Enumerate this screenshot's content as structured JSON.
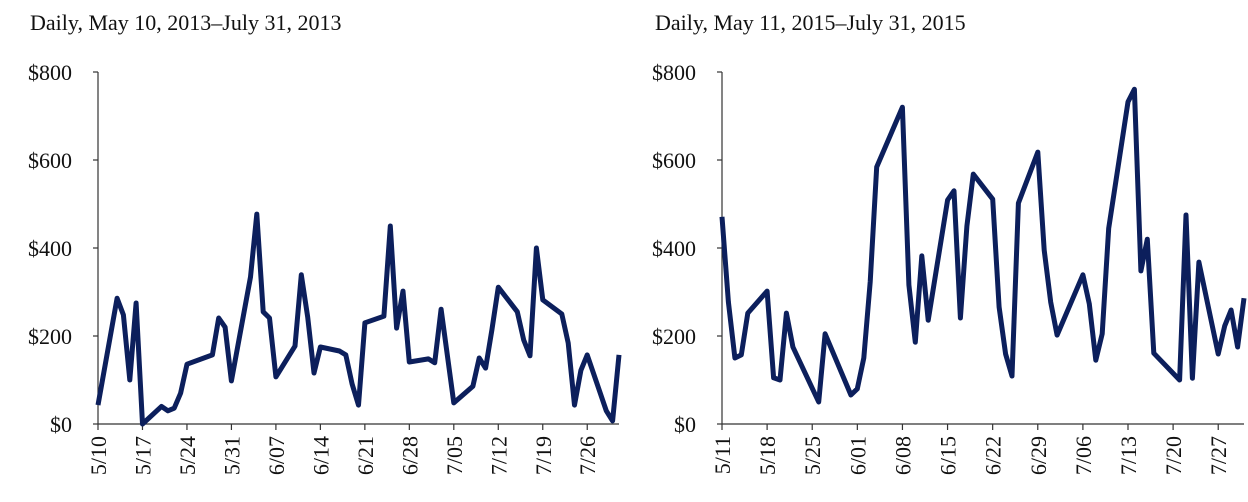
{
  "chart_data": [
    {
      "type": "line",
      "title": "Daily, May 10, 2013–July 31, 2013",
      "color": "#0c1f5c",
      "x": [
        0,
        3,
        4,
        5,
        6,
        7,
        10,
        11,
        12,
        13,
        14,
        18,
        19,
        20,
        21,
        24,
        25,
        26,
        27,
        28,
        31,
        32,
        33,
        34,
        35,
        38,
        39,
        40,
        41,
        42,
        45,
        46,
        47,
        48,
        49,
        52,
        53,
        54,
        56,
        59,
        60,
        61,
        62,
        63,
        66,
        67,
        68,
        69,
        70,
        73,
        74,
        75,
        76,
        77,
        80,
        81,
        82
      ],
      "series": [
        {
          "name": "2013",
          "color": "#0c1f5c",
          "values": [
            43,
            286,
            248,
            100,
            275,
            0,
            40,
            30,
            36,
            70,
            136,
            157,
            241,
            220,
            98,
            334,
            477,
            255,
            241,
            107,
            177,
            339,
            243,
            116,
            175,
            166,
            157,
            91,
            43,
            230,
            245,
            450,
            218,
            302,
            141,
            148,
            139,
            261,
            48,
            86,
            150,
            127,
            214,
            311,
            255,
            191,
            155,
            400,
            282,
            250,
            184,
            43,
            122,
            157,
            30,
            7,
            157
          ]
        }
      ],
      "xlim": [
        0,
        82
      ],
      "xticks": [
        {
          "value": 0,
          "label": "5/10"
        },
        {
          "value": 7,
          "label": "5/17"
        },
        {
          "value": 14,
          "label": "5/24"
        },
        {
          "value": 21,
          "label": "5/31"
        },
        {
          "value": 28,
          "label": "6/07"
        },
        {
          "value": 35,
          "label": "6/14"
        },
        {
          "value": 42,
          "label": "6/21"
        },
        {
          "value": 49,
          "label": "6/28"
        },
        {
          "value": 56,
          "label": "7/05"
        },
        {
          "value": 63,
          "label": "7/12"
        },
        {
          "value": 70,
          "label": "7/19"
        },
        {
          "value": 77,
          "label": "7/26"
        }
      ],
      "ylim": [
        0,
        800
      ],
      "yticks": [
        {
          "value": 0,
          "label": "$0"
        },
        {
          "value": 200,
          "label": "$200"
        },
        {
          "value": 400,
          "label": "$400"
        },
        {
          "value": 600,
          "label": "$600"
        },
        {
          "value": 800,
          "label": "$800"
        }
      ]
    },
    {
      "type": "line",
      "title": "Daily, May 11, 2015–July 31, 2015",
      "color": "#0c1f5c",
      "x": [
        0,
        1,
        2,
        3,
        4,
        7,
        8,
        9,
        10,
        11,
        15,
        16,
        20,
        21,
        22,
        23,
        24,
        28,
        29,
        30,
        31,
        32,
        35,
        36,
        37,
        38,
        39,
        42,
        43,
        44,
        45,
        46,
        49,
        50,
        51,
        52,
        56,
        57,
        58,
        59,
        60,
        63,
        64,
        65,
        66,
        67,
        71,
        72,
        73,
        74,
        77,
        78,
        79,
        80,
        81
      ],
      "series": [
        {
          "name": "2015",
          "color": "#0c1f5c",
          "values": [
            471,
            277,
            150,
            157,
            252,
            302,
            105,
            100,
            252,
            175,
            50,
            205,
            66,
            80,
            150,
            323,
            584,
            720,
            316,
            186,
            382,
            236,
            509,
            530,
            241,
            450,
            568,
            511,
            266,
            159,
            109,
            502,
            618,
            395,
            277,
            202,
            339,
            273,
            145,
            205,
            445,
            732,
            761,
            348,
            420,
            161,
            100,
            475,
            104,
            368,
            159,
            223,
            259,
            175,
            286
          ]
        }
      ],
      "xlim": [
        0,
        81
      ],
      "xticks": [
        {
          "value": 0,
          "label": "5/11"
        },
        {
          "value": 7,
          "label": "5/18"
        },
        {
          "value": 14,
          "label": "5/25"
        },
        {
          "value": 21,
          "label": "6/01"
        },
        {
          "value": 28,
          "label": "6/08"
        },
        {
          "value": 35,
          "label": "6/15"
        },
        {
          "value": 42,
          "label": "6/22"
        },
        {
          "value": 49,
          "label": "6/29"
        },
        {
          "value": 56,
          "label": "7/06"
        },
        {
          "value": 63,
          "label": "7/13"
        },
        {
          "value": 70,
          "label": "7/20"
        },
        {
          "value": 77,
          "label": "7/27"
        }
      ],
      "ylim": [
        0,
        800
      ],
      "yticks": [
        {
          "value": 0,
          "label": "$0"
        },
        {
          "value": 200,
          "label": "$200"
        },
        {
          "value": 400,
          "label": "$400"
        },
        {
          "value": 600,
          "label": "$600"
        },
        {
          "value": 800,
          "label": "$800"
        }
      ]
    }
  ]
}
